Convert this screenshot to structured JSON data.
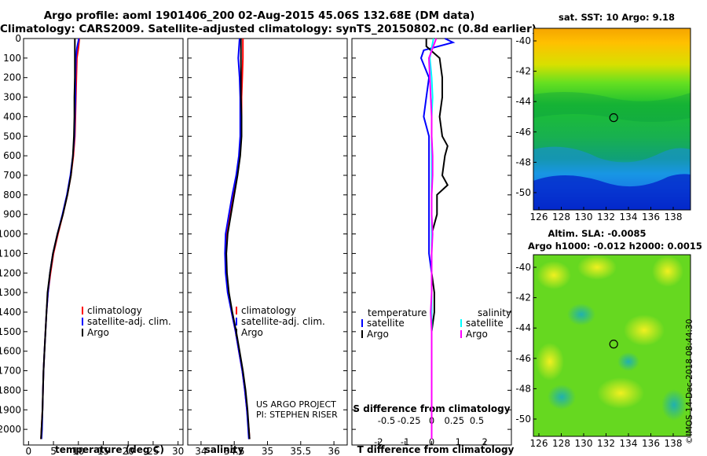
{
  "header": {
    "title_line1": "Argo profile: aoml 1901406_200 02-Aug-2015 45.06S 132.68E (DM data)",
    "title_line2": "Climatology: CARS2009. Satellite-adjusted climatology: synTS_20150802.nc (0.8d earlier)"
  },
  "notes": {
    "project_line1": "US ARGO PROJECT",
    "project_line2": "PI: STEPHEN RISER"
  },
  "maps": {
    "sst_title": "sat. SST: 10 Argo: 9.18",
    "sla_title_line1": "Altim. SLA: -0.0085",
    "sla_title_line2": "Argo h1000: -0.012 h2000: 0.0015",
    "lat_ticks": [
      "-40",
      "-42",
      "-44",
      "-46",
      "-48",
      "-50"
    ],
    "lon_ticks": [
      "126",
      "128",
      "130",
      "132",
      "134",
      "136",
      "138"
    ],
    "marker": {
      "lon": 132.68,
      "lat": -45.06
    }
  },
  "credit": "©IMOS 14-Dec-2018 08:44:30",
  "colors": {
    "climatology": "#ff0000",
    "satellite": "#0000ff",
    "argo": "#000000",
    "salinity_satellite": "#00ffff",
    "salinity_argo": "#ff00ff"
  },
  "chart_data": [
    {
      "type": "line",
      "xlabel": "temperature (deg C)",
      "ylabel": "",
      "xlim": [
        -1,
        31
      ],
      "ylim": [
        2080,
        0
      ],
      "xticks": [
        "0",
        "5",
        "10",
        "15",
        "20",
        "25",
        "30"
      ],
      "yticks": [
        "0",
        "100",
        "200",
        "300",
        "400",
        "500",
        "600",
        "700",
        "800",
        "900",
        "1000",
        "1100",
        "1200",
        "1300",
        "1400",
        "1500",
        "1600",
        "1700",
        "1800",
        "1900",
        "2000"
      ],
      "legend": {
        "placement": "lower-right",
        "entries": [
          "climatology",
          "satellite-adj. clim.",
          "Argo"
        ]
      },
      "series": [
        {
          "name": "climatology",
          "color": "#ff0000",
          "points": [
            [
              10.2,
              0
            ],
            [
              10.0,
              50
            ],
            [
              9.7,
              100
            ],
            [
              9.6,
              200
            ],
            [
              9.5,
              300
            ],
            [
              9.4,
              400
            ],
            [
              9.3,
              500
            ],
            [
              9.0,
              600
            ],
            [
              8.5,
              700
            ],
            [
              7.8,
              800
            ],
            [
              6.9,
              900
            ],
            [
              5.9,
              1000
            ],
            [
              5.0,
              1100
            ],
            [
              4.4,
              1200
            ],
            [
              3.9,
              1300
            ],
            [
              3.6,
              1400
            ],
            [
              3.4,
              1500
            ],
            [
              3.2,
              1600
            ],
            [
              3.0,
              1700
            ],
            [
              2.9,
              1800
            ],
            [
              2.8,
              1900
            ],
            [
              2.6,
              2000
            ],
            [
              2.5,
              2050
            ]
          ]
        },
        {
          "name": "satellite-adj. clim.",
          "color": "#0000ff",
          "points": [
            [
              10.1,
              0
            ],
            [
              9.7,
              50
            ],
            [
              9.5,
              100
            ],
            [
              9.4,
              200
            ],
            [
              9.4,
              300
            ],
            [
              9.3,
              400
            ],
            [
              9.2,
              500
            ],
            [
              8.9,
              600
            ],
            [
              8.4,
              700
            ],
            [
              7.7,
              800
            ],
            [
              6.8,
              900
            ],
            [
              5.8,
              1000
            ],
            [
              4.9,
              1100
            ],
            [
              4.3,
              1200
            ],
            [
              3.9,
              1300
            ],
            [
              3.6,
              1400
            ],
            [
              3.4,
              1500
            ],
            [
              3.2,
              1600
            ],
            [
              3.0,
              1700
            ],
            [
              2.9,
              1800
            ],
            [
              2.8,
              1900
            ],
            [
              2.7,
              2000
            ],
            [
              2.6,
              2050
            ]
          ]
        },
        {
          "name": "Argo",
          "color": "#000000",
          "points": [
            [
              9.3,
              0
            ],
            [
              9.3,
              50
            ],
            [
              9.3,
              100
            ],
            [
              9.3,
              200
            ],
            [
              9.2,
              300
            ],
            [
              9.2,
              400
            ],
            [
              9.1,
              500
            ],
            [
              8.9,
              600
            ],
            [
              8.5,
              700
            ],
            [
              7.8,
              800
            ],
            [
              6.9,
              900
            ],
            [
              5.8,
              1000
            ],
            [
              4.9,
              1100
            ],
            [
              4.3,
              1200
            ],
            [
              3.8,
              1300
            ],
            [
              3.6,
              1400
            ],
            [
              3.4,
              1500
            ],
            [
              3.2,
              1600
            ],
            [
              3.0,
              1700
            ],
            [
              2.9,
              1800
            ],
            [
              2.8,
              1900
            ],
            [
              2.6,
              2000
            ],
            [
              2.5,
              2050
            ]
          ]
        }
      ]
    },
    {
      "type": "line",
      "xlabel": "salinity",
      "xlim": [
        33.8,
        36.2
      ],
      "ylim": [
        2080,
        0
      ],
      "xticks": [
        "34",
        "34.5",
        "35",
        "35.5",
        "36"
      ],
      "legend": {
        "placement": "lower-right",
        "entries": [
          "climatology",
          "satellite-adj. clim.",
          "Argo"
        ]
      },
      "series": [
        {
          "name": "climatology",
          "color": "#ff0000",
          "points": [
            [
              34.63,
              0
            ],
            [
              34.63,
              100
            ],
            [
              34.62,
              200
            ],
            [
              34.61,
              300
            ],
            [
              34.61,
              400
            ],
            [
              34.6,
              500
            ],
            [
              34.58,
              600
            ],
            [
              34.54,
              700
            ],
            [
              34.48,
              800
            ],
            [
              34.43,
              900
            ],
            [
              34.38,
              1000
            ],
            [
              34.37,
              1100
            ],
            [
              34.38,
              1200
            ],
            [
              34.41,
              1300
            ],
            [
              34.46,
              1400
            ],
            [
              34.52,
              1500
            ],
            [
              34.57,
              1600
            ],
            [
              34.62,
              1700
            ],
            [
              34.66,
              1800
            ],
            [
              34.69,
              1900
            ],
            [
              34.72,
              2000
            ],
            [
              34.73,
              2050
            ]
          ]
        },
        {
          "name": "satellite-adj. clim.",
          "color": "#0000ff",
          "points": [
            [
              34.58,
              0
            ],
            [
              34.56,
              100
            ],
            [
              34.58,
              200
            ],
            [
              34.59,
              300
            ],
            [
              34.59,
              400
            ],
            [
              34.59,
              500
            ],
            [
              34.57,
              600
            ],
            [
              34.53,
              700
            ],
            [
              34.47,
              800
            ],
            [
              34.42,
              900
            ],
            [
              34.37,
              1000
            ],
            [
              34.36,
              1100
            ],
            [
              34.37,
              1200
            ],
            [
              34.4,
              1300
            ],
            [
              34.46,
              1400
            ],
            [
              34.52,
              1500
            ],
            [
              34.57,
              1600
            ],
            [
              34.62,
              1700
            ],
            [
              34.66,
              1800
            ],
            [
              34.69,
              1900
            ],
            [
              34.71,
              2000
            ],
            [
              34.72,
              2050
            ]
          ]
        },
        {
          "name": "Argo",
          "color": "#000000",
          "points": [
            [
              34.6,
              0
            ],
            [
              34.6,
              100
            ],
            [
              34.6,
              200
            ],
            [
              34.6,
              300
            ],
            [
              34.61,
              400
            ],
            [
              34.61,
              500
            ],
            [
              34.59,
              600
            ],
            [
              34.55,
              700
            ],
            [
              34.5,
              800
            ],
            [
              34.45,
              900
            ],
            [
              34.4,
              1000
            ],
            [
              34.38,
              1100
            ],
            [
              34.39,
              1200
            ],
            [
              34.42,
              1300
            ],
            [
              34.47,
              1400
            ],
            [
              34.53,
              1500
            ],
            [
              34.58,
              1600
            ],
            [
              34.63,
              1700
            ],
            [
              34.67,
              1800
            ],
            [
              34.7,
              1900
            ],
            [
              34.72,
              2000
            ],
            [
              34.73,
              2050
            ]
          ]
        }
      ]
    },
    {
      "type": "line",
      "xlabel": "T difference from climatology",
      "xlabel2": "S difference from climatology",
      "xlim": [
        -3,
        3
      ],
      "ylim": [
        2080,
        0
      ],
      "xticks": [
        "-2",
        "-1",
        "0",
        "1",
        "2"
      ],
      "xticks2": [
        "-0.5",
        "-0.25",
        "0",
        "0.25",
        "0.5"
      ],
      "legend": {
        "placement": "lower",
        "temperature_header": "temperature",
        "salinity_header": "salinity",
        "temperature_entries": [
          "satellite",
          "Argo"
        ],
        "salinity_entries": [
          "satellite",
          "Argo"
        ]
      },
      "series": [
        {
          "name": "satellite",
          "variable": "temperature",
          "color": "#0000ff",
          "points": [
            [
              0.5,
              0
            ],
            [
              0.8,
              20
            ],
            [
              -0.3,
              60
            ],
            [
              -0.4,
              100
            ],
            [
              -0.1,
              200
            ],
            [
              -0.2,
              300
            ],
            [
              -0.3,
              400
            ],
            [
              -0.1,
              500
            ],
            [
              -0.1,
              600
            ],
            [
              -0.1,
              700
            ],
            [
              -0.1,
              800
            ],
            [
              -0.1,
              900
            ],
            [
              -0.1,
              1000
            ],
            [
              -0.1,
              1100
            ],
            [
              0.0,
              1200
            ],
            [
              0.0,
              1300
            ],
            [
              0.0,
              1400
            ],
            [
              0.0,
              1500
            ],
            [
              0.0,
              1600
            ],
            [
              0.0,
              1700
            ],
            [
              0.0,
              1800
            ],
            [
              0.0,
              1900
            ],
            [
              0.0,
              2000
            ],
            [
              0.0,
              2050
            ]
          ]
        },
        {
          "name": "Argo",
          "variable": "temperature",
          "color": "#000000",
          "points": [
            [
              -0.2,
              0
            ],
            [
              -0.2,
              40
            ],
            [
              0.3,
              100
            ],
            [
              0.4,
              200
            ],
            [
              0.4,
              300
            ],
            [
              0.3,
              400
            ],
            [
              0.4,
              500
            ],
            [
              0.6,
              550
            ],
            [
              0.5,
              600
            ],
            [
              0.4,
              700
            ],
            [
              0.6,
              750
            ],
            [
              0.2,
              800
            ],
            [
              0.2,
              900
            ],
            [
              0.0,
              1000
            ],
            [
              0.0,
              1100
            ],
            [
              0.0,
              1200
            ],
            [
              0.1,
              1300
            ],
            [
              0.1,
              1400
            ],
            [
              0.0,
              1500
            ],
            [
              0.0,
              1600
            ],
            [
              0.0,
              1700
            ],
            [
              0.0,
              1800
            ],
            [
              0.0,
              1900
            ],
            [
              0.0,
              2000
            ],
            [
              0.0,
              2050
            ]
          ]
        },
        {
          "name": "satellite",
          "variable": "salinity",
          "color": "#00ffff",
          "points": [
            [
              0.02,
              0
            ],
            [
              -0.02,
              100
            ],
            [
              0.0,
              200
            ],
            [
              0.01,
              300
            ],
            [
              0.0,
              400
            ],
            [
              0.0,
              500
            ],
            [
              0.0,
              600
            ],
            [
              0.0,
              700
            ],
            [
              0.0,
              800
            ],
            [
              0.0,
              900
            ],
            [
              0.0,
              1000
            ],
            [
              0.0,
              1100
            ],
            [
              0.0,
              1200
            ],
            [
              0.0,
              1300
            ],
            [
              0.0,
              1400
            ],
            [
              0.0,
              1500
            ],
            [
              0.0,
              1600
            ],
            [
              0.0,
              1700
            ],
            [
              0.0,
              1800
            ],
            [
              0.0,
              1900
            ],
            [
              0.0,
              2000
            ],
            [
              0.0,
              2050
            ]
          ]
        },
        {
          "name": "Argo",
          "variable": "salinity",
          "color": "#ff00ff",
          "points": [
            [
              0.05,
              0
            ],
            [
              -0.03,
              100
            ],
            [
              -0.02,
              200
            ],
            [
              -0.01,
              300
            ],
            [
              0.0,
              400
            ],
            [
              0.0,
              500
            ],
            [
              0.01,
              600
            ],
            [
              0.01,
              700
            ],
            [
              0.0,
              800
            ],
            [
              0.0,
              900
            ],
            [
              0.01,
              1000
            ],
            [
              0.0,
              1100
            ],
            [
              0.0,
              1200
            ],
            [
              0.0,
              1300
            ],
            [
              -0.01,
              1400
            ],
            [
              0.0,
              1500
            ],
            [
              0.0,
              1600
            ],
            [
              0.0,
              1700
            ],
            [
              0.0,
              1800
            ],
            [
              0.0,
              1900
            ],
            [
              0.0,
              2000
            ],
            [
              0.0,
              2050
            ]
          ]
        }
      ]
    }
  ]
}
